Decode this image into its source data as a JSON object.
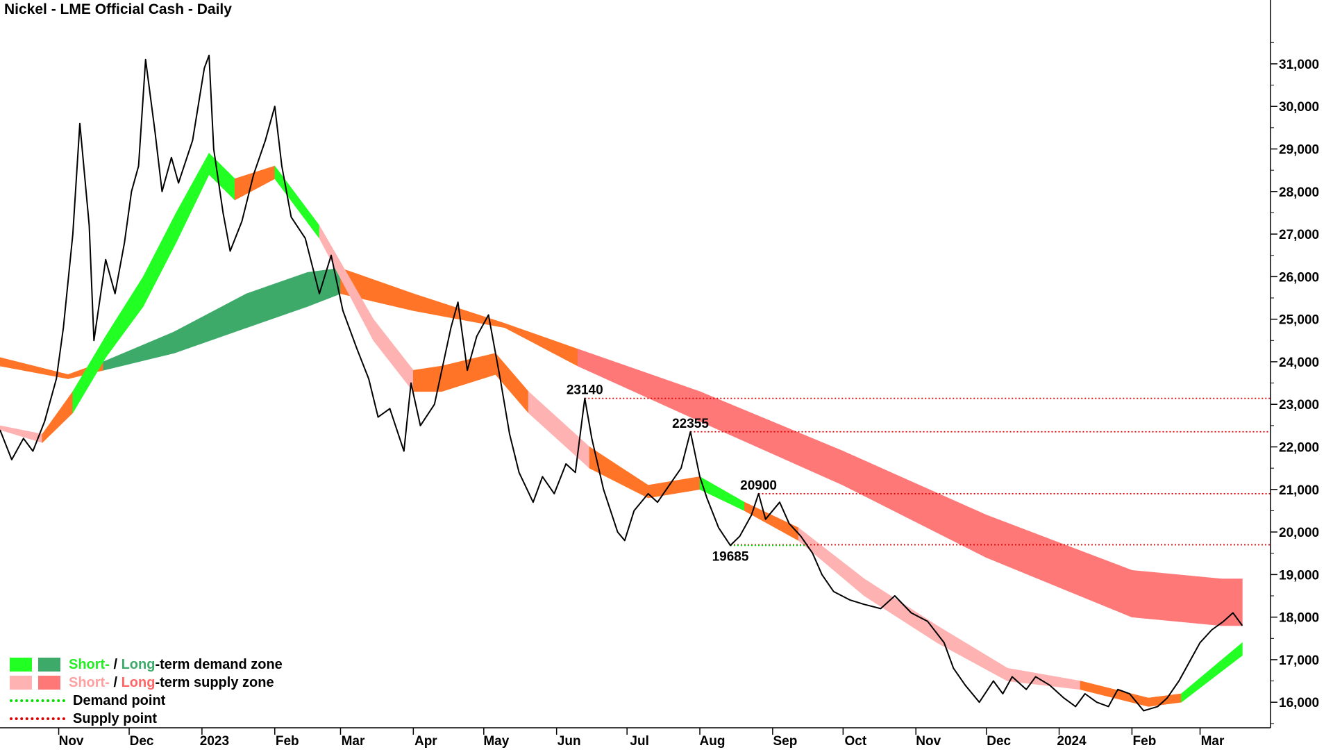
{
  "title": "Nickel - LME Official Cash - Daily",
  "colors": {
    "price": "#000000",
    "short_demand": "#22ff22",
    "long_demand": "#3daa6a",
    "short_supply": "#ffb2b2",
    "long_supply": "#ff7878",
    "transition": "#ff7426",
    "demand_point": "#00dd00",
    "supply_point": "#dd0000"
  },
  "legend": {
    "short_label": "Short-",
    "slash": " / ",
    "long_label": "Long",
    "demand_suffix": "-term demand zone",
    "supply_suffix": "-term supply zone",
    "demand_point": "Demand point",
    "supply_point": "Supply point"
  },
  "chart_data": {
    "type": "line",
    "title": "Nickel - LME Official Cash - Daily",
    "y_axis": {
      "position": "right",
      "ylim": [
        15400,
        32500
      ],
      "ticks": [
        16000,
        17000,
        18000,
        19000,
        20000,
        21000,
        22000,
        23000,
        24000,
        25000,
        26000,
        27000,
        28000,
        29000,
        30000,
        31000
      ],
      "tick_labels": [
        "16,000",
        "17,000",
        "18,000",
        "19,000",
        "20,000",
        "21,000",
        "22,000",
        "23,000",
        "24,000",
        "25,000",
        "26,000",
        "27,000",
        "28,000",
        "29,000",
        "30,000",
        "31,000"
      ]
    },
    "x_axis": {
      "labels": [
        "Nov",
        "Dec",
        "2023",
        "Feb",
        "Mar",
        "Apr",
        "May",
        "Jun",
        "Jul",
        "Aug",
        "Sep",
        "Oct",
        "Nov",
        "Dec",
        "2024",
        "Feb",
        "Mar"
      ],
      "dates": [
        "2022-11-01",
        "2022-12-01",
        "2023-01-01",
        "2023-02-01",
        "2023-03-01",
        "2023-04-01",
        "2023-05-01",
        "2023-06-01",
        "2023-07-01",
        "2023-08-01",
        "2023-09-01",
        "2023-10-01",
        "2023-11-01",
        "2023-12-01",
        "2024-01-01",
        "2024-02-01",
        "2024-03-01"
      ],
      "range": [
        "2022-10-07",
        "2024-03-31"
      ]
    },
    "price_series": {
      "name": "Nickel LME Official Cash",
      "points": [
        [
          "2022-10-07",
          22400
        ],
        [
          "2022-10-12",
          21700
        ],
        [
          "2022-10-17",
          22200
        ],
        [
          "2022-10-21",
          21900
        ],
        [
          "2022-10-26",
          22600
        ],
        [
          "2022-10-31",
          23600
        ],
        [
          "2022-11-03",
          24800
        ],
        [
          "2022-11-07",
          27000
        ],
        [
          "2022-11-10",
          29600
        ],
        [
          "2022-11-14",
          27200
        ],
        [
          "2022-11-16",
          24500
        ],
        [
          "2022-11-21",
          26400
        ],
        [
          "2022-11-25",
          25600
        ],
        [
          "2022-11-29",
          26800
        ],
        [
          "2022-12-02",
          28000
        ],
        [
          "2022-12-05",
          28600
        ],
        [
          "2022-12-08",
          31100
        ],
        [
          "2022-12-12",
          29400
        ],
        [
          "2022-12-15",
          28000
        ],
        [
          "2022-12-19",
          28800
        ],
        [
          "2022-12-22",
          28200
        ],
        [
          "2022-12-28",
          29200
        ],
        [
          "2023-01-02",
          30900
        ],
        [
          "2023-01-04",
          31200
        ],
        [
          "2023-01-06",
          29000
        ],
        [
          "2023-01-10",
          27500
        ],
        [
          "2023-01-13",
          26600
        ],
        [
          "2023-01-18",
          27300
        ],
        [
          "2023-01-23",
          28400
        ],
        [
          "2023-01-28",
          29200
        ],
        [
          "2023-02-01",
          30000
        ],
        [
          "2023-02-04",
          28600
        ],
        [
          "2023-02-08",
          27400
        ],
        [
          "2023-02-14",
          26900
        ],
        [
          "2023-02-20",
          25600
        ],
        [
          "2023-02-25",
          26500
        ],
        [
          "2023-03-02",
          25200
        ],
        [
          "2023-03-08",
          24300
        ],
        [
          "2023-03-13",
          23600
        ],
        [
          "2023-03-17",
          22700
        ],
        [
          "2023-03-22",
          22900
        ],
        [
          "2023-03-28",
          21900
        ],
        [
          "2023-03-31",
          23500
        ],
        [
          "2023-04-04",
          22500
        ],
        [
          "2023-04-10",
          23000
        ],
        [
          "2023-04-17",
          24800
        ],
        [
          "2023-04-20",
          25400
        ],
        [
          "2023-04-24",
          23800
        ],
        [
          "2023-04-28",
          24600
        ],
        [
          "2023-05-03",
          25100
        ],
        [
          "2023-05-08",
          23600
        ],
        [
          "2023-05-12",
          22300
        ],
        [
          "2023-05-16",
          21400
        ],
        [
          "2023-05-22",
          20700
        ],
        [
          "2023-05-26",
          21300
        ],
        [
          "2023-05-31",
          20900
        ],
        [
          "2023-06-05",
          21600
        ],
        [
          "2023-06-09",
          21400
        ],
        [
          "2023-06-13",
          23140
        ],
        [
          "2023-06-16",
          22200
        ],
        [
          "2023-06-21",
          21000
        ],
        [
          "2023-06-27",
          20000
        ],
        [
          "2023-06-30",
          19800
        ],
        [
          "2023-07-04",
          20500
        ],
        [
          "2023-07-10",
          20900
        ],
        [
          "2023-07-14",
          20700
        ],
        [
          "2023-07-19",
          21100
        ],
        [
          "2023-07-24",
          21500
        ],
        [
          "2023-07-28",
          22355
        ],
        [
          "2023-08-01",
          21300
        ],
        [
          "2023-08-04",
          20800
        ],
        [
          "2023-08-09",
          20100
        ],
        [
          "2023-08-14",
          19685
        ],
        [
          "2023-08-18",
          19900
        ],
        [
          "2023-08-23",
          20400
        ],
        [
          "2023-08-26",
          20900
        ],
        [
          "2023-08-29",
          20300
        ],
        [
          "2023-09-04",
          20700
        ],
        [
          "2023-09-08",
          20200
        ],
        [
          "2023-09-13",
          19900
        ],
        [
          "2023-09-18",
          19500
        ],
        [
          "2023-09-22",
          19000
        ],
        [
          "2023-09-27",
          18600
        ],
        [
          "2023-10-04",
          18400
        ],
        [
          "2023-10-10",
          18300
        ],
        [
          "2023-10-17",
          18200
        ],
        [
          "2023-10-23",
          18500
        ],
        [
          "2023-10-30",
          18100
        ],
        [
          "2023-11-06",
          17900
        ],
        [
          "2023-11-13",
          17400
        ],
        [
          "2023-11-17",
          16800
        ],
        [
          "2023-11-22",
          16400
        ],
        [
          "2023-11-28",
          16000
        ],
        [
          "2023-12-04",
          16500
        ],
        [
          "2023-12-08",
          16200
        ],
        [
          "2023-12-12",
          16600
        ],
        [
          "2023-12-18",
          16300
        ],
        [
          "2023-12-22",
          16600
        ],
        [
          "2023-12-28",
          16400
        ],
        [
          "2024-01-03",
          16100
        ],
        [
          "2024-01-08",
          15900
        ],
        [
          "2024-01-12",
          16200
        ],
        [
          "2024-01-17",
          16000
        ],
        [
          "2024-01-22",
          15900
        ],
        [
          "2024-01-26",
          16300
        ],
        [
          "2024-01-31",
          16200
        ],
        [
          "2024-02-06",
          15800
        ],
        [
          "2024-02-12",
          15900
        ],
        [
          "2024-02-16",
          16100
        ],
        [
          "2024-02-21",
          16500
        ],
        [
          "2024-02-26",
          17000
        ],
        [
          "2024-03-01",
          17400
        ],
        [
          "2024-03-06",
          17700
        ],
        [
          "2024-03-11",
          17900
        ],
        [
          "2024-03-15",
          18100
        ],
        [
          "2024-03-19",
          17800
        ]
      ]
    },
    "short_term_zone": [
      {
        "x": "2022-10-07",
        "upper": 22500,
        "lower": 22400,
        "state": "supply"
      },
      {
        "x": "2022-10-25",
        "upper": 22300,
        "lower": 22100,
        "state": "transition"
      },
      {
        "x": "2022-11-07",
        "upper": 23300,
        "lower": 22800,
        "state": "demand"
      },
      {
        "x": "2022-11-21",
        "upper": 24600,
        "lower": 24100,
        "state": "demand"
      },
      {
        "x": "2022-12-07",
        "upper": 26000,
        "lower": 25300,
        "state": "demand"
      },
      {
        "x": "2022-12-21",
        "upper": 27500,
        "lower": 26800,
        "state": "demand"
      },
      {
        "x": "2023-01-04",
        "upper": 28900,
        "lower": 28400,
        "state": "demand"
      },
      {
        "x": "2023-01-15",
        "upper": 28300,
        "lower": 27800,
        "state": "transition"
      },
      {
        "x": "2023-02-01",
        "upper": 28600,
        "lower": 28300,
        "state": "demand"
      },
      {
        "x": "2023-02-20",
        "upper": 27200,
        "lower": 26900,
        "state": "supply"
      },
      {
        "x": "2023-03-15",
        "upper": 25000,
        "lower": 24500,
        "state": "supply"
      },
      {
        "x": "2023-04-01",
        "upper": 23800,
        "lower": 23300,
        "state": "transition"
      },
      {
        "x": "2023-04-13",
        "upper": 23900,
        "lower": 23300,
        "state": "transition"
      },
      {
        "x": "2023-05-06",
        "upper": 24200,
        "lower": 23700,
        "state": "transition"
      },
      {
        "x": "2023-05-20",
        "upper": 23300,
        "lower": 22800,
        "state": "supply"
      },
      {
        "x": "2023-06-15",
        "upper": 22000,
        "lower": 21500,
        "state": "transition"
      },
      {
        "x": "2023-07-10",
        "upper": 21100,
        "lower": 20800,
        "state": "transition"
      },
      {
        "x": "2023-08-01",
        "upper": 21300,
        "lower": 21000,
        "state": "demand"
      },
      {
        "x": "2023-08-20",
        "upper": 20700,
        "lower": 20500,
        "state": "transition"
      },
      {
        "x": "2023-09-12",
        "upper": 20100,
        "lower": 19800,
        "state": "supply"
      },
      {
        "x": "2023-10-10",
        "upper": 18900,
        "lower": 18500,
        "state": "supply"
      },
      {
        "x": "2023-11-10",
        "upper": 17800,
        "lower": 17400,
        "state": "supply"
      },
      {
        "x": "2023-12-10",
        "upper": 16800,
        "lower": 16500,
        "state": "supply"
      },
      {
        "x": "2024-01-10",
        "upper": 16500,
        "lower": 16300,
        "state": "transition"
      },
      {
        "x": "2024-02-08",
        "upper": 16100,
        "lower": 15900,
        "state": "transition"
      },
      {
        "x": "2024-02-22",
        "upper": 16200,
        "lower": 16000,
        "state": "demand"
      },
      {
        "x": "2024-03-19",
        "upper": 17400,
        "lower": 17100,
        "state": "demand"
      }
    ],
    "long_term_zone": [
      {
        "x": "2022-10-07",
        "upper": 24100,
        "lower": 23900,
        "state": "transition"
      },
      {
        "x": "2022-11-05",
        "upper": 23700,
        "lower": 23600,
        "state": "transition"
      },
      {
        "x": "2022-11-20",
        "upper": 24000,
        "lower": 23800,
        "state": "demand"
      },
      {
        "x": "2022-12-20",
        "upper": 24700,
        "lower": 24200,
        "state": "demand"
      },
      {
        "x": "2023-01-20",
        "upper": 25600,
        "lower": 24800,
        "state": "demand"
      },
      {
        "x": "2023-02-15",
        "upper": 26100,
        "lower": 25300,
        "state": "demand"
      },
      {
        "x": "2023-03-01",
        "upper": 26200,
        "lower": 25600,
        "state": "transition"
      },
      {
        "x": "2023-04-01",
        "upper": 25600,
        "lower": 25200,
        "state": "transition"
      },
      {
        "x": "2023-05-10",
        "upper": 24900,
        "lower": 24800,
        "state": "transition"
      },
      {
        "x": "2023-06-10",
        "upper": 24300,
        "lower": 23900,
        "state": "supply"
      },
      {
        "x": "2023-08-01",
        "upper": 23300,
        "lower": 22600,
        "state": "supply"
      },
      {
        "x": "2023-10-01",
        "upper": 21900,
        "lower": 21100,
        "state": "supply"
      },
      {
        "x": "2023-12-01",
        "upper": 20400,
        "lower": 19400,
        "state": "supply"
      },
      {
        "x": "2024-02-01",
        "upper": 19100,
        "lower": 18000,
        "state": "supply"
      },
      {
        "x": "2024-03-10",
        "upper": 18900,
        "lower": 17800,
        "state": "supply"
      },
      {
        "x": "2024-03-19",
        "upper": 18900,
        "lower": 17800,
        "state": "transition"
      }
    ],
    "supply_points": [
      {
        "date": "2023-06-13",
        "value": 23140,
        "label": "23140"
      },
      {
        "date": "2023-07-28",
        "value": 22355,
        "label": "22355"
      },
      {
        "date": "2023-08-26",
        "value": 20900,
        "label": "20900"
      },
      {
        "date": "2023-08-14",
        "value": 19700,
        "label": ""
      }
    ],
    "demand_points": [
      {
        "date": "2023-08-14",
        "value": 19685,
        "label": "19685",
        "end": "2023-09-15"
      }
    ]
  }
}
